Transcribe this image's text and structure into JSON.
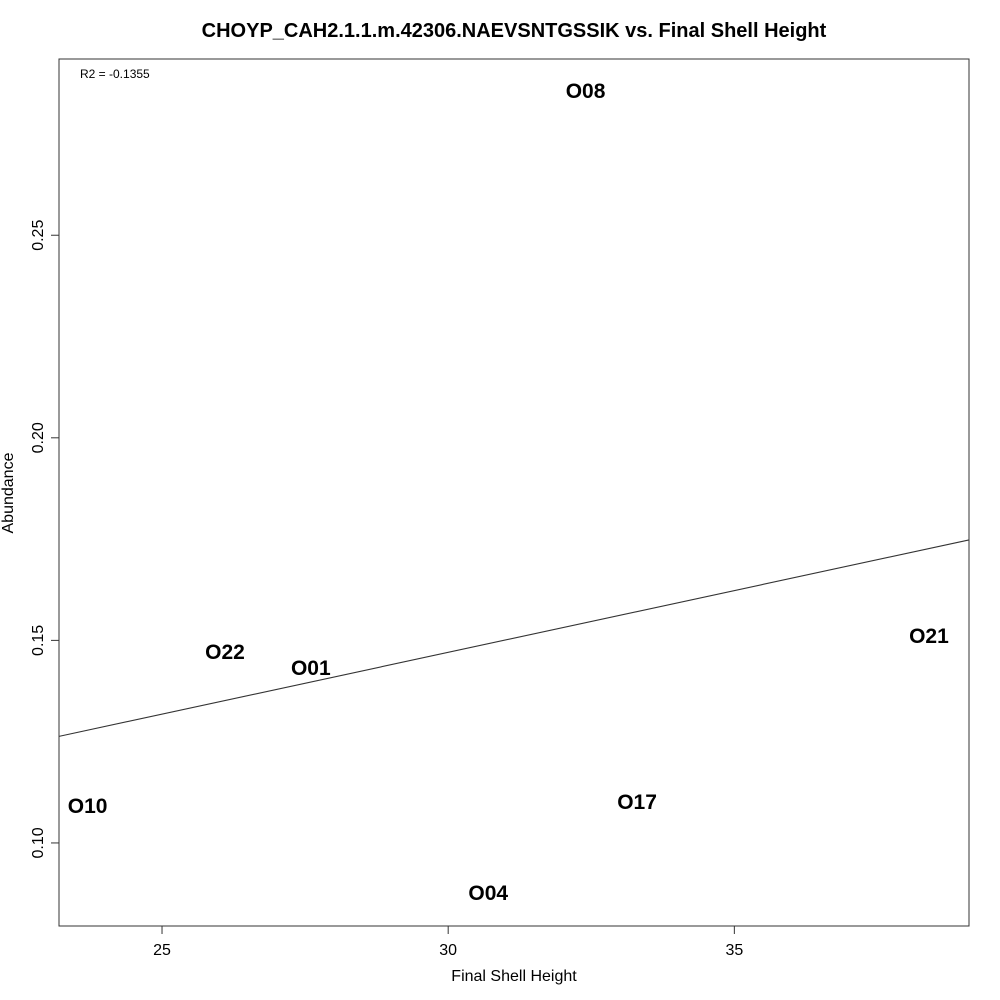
{
  "chart_data": {
    "type": "scatter",
    "title": "CHOYP_CAH2.1.1.m.42306.NAEVSNTGSSIK vs. Final Shell Height",
    "xlabel": "Final Shell Height",
    "ylabel": "Abundance",
    "xlim": [
      23.2,
      39.1
    ],
    "ylim": [
      0.0795,
      0.2935
    ],
    "x_ticks": [
      25,
      30,
      35
    ],
    "x_tick_labels": [
      "25",
      "30",
      "35"
    ],
    "y_ticks": [
      0.1,
      0.15,
      0.2,
      0.25
    ],
    "y_tick_labels": [
      "0.10",
      "0.15",
      "0.20",
      "0.25"
    ],
    "grid": false,
    "legend": "none",
    "annotation": "R2 = -0.1355",
    "points": [
      {
        "label": "O08",
        "x": 32.4,
        "y": 0.2855
      },
      {
        "label": "O22",
        "x": 26.1,
        "y": 0.147
      },
      {
        "label": "O01",
        "x": 27.6,
        "y": 0.143
      },
      {
        "label": "O21",
        "x": 38.4,
        "y": 0.151
      },
      {
        "label": "O10",
        "x": 23.7,
        "y": 0.109
      },
      {
        "label": "O17",
        "x": 33.3,
        "y": 0.11
      },
      {
        "label": "O04",
        "x": 30.7,
        "y": 0.0875
      }
    ],
    "fit_line": {
      "x": [
        23.2,
        39.1
      ],
      "y": [
        0.1263,
        0.1748
      ]
    },
    "colors": {
      "text": "#000000",
      "line": "#333333",
      "frame": "#333333"
    }
  }
}
